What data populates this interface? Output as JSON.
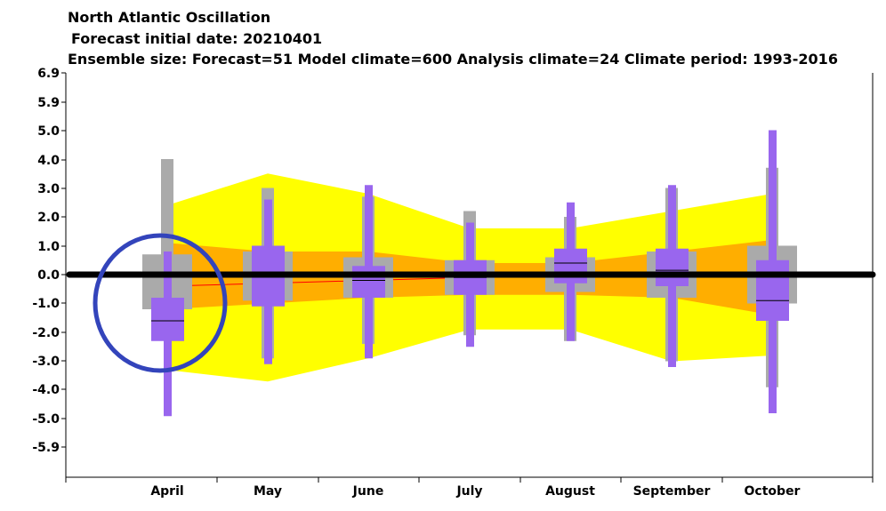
{
  "chart_data": {
    "type": "box",
    "title": "North Atlantic Oscillation",
    "subtitle_1": "Forecast initial date: 20210401",
    "subtitle_2": "Ensemble size: Forecast=51 Model climate=600 Analysis climate=24   Climate period: 1993-2016",
    "categories": [
      "April",
      "May",
      "June",
      "July",
      "August",
      "September",
      "October"
    ],
    "y_ticks": [
      "6.9",
      "5.9",
      "5.0",
      "4.0",
      "3.0",
      "2.0",
      "1.0",
      "0.0",
      "-1.0",
      "-2.0",
      "-3.0",
      "-4.0",
      "-5.0",
      "-5.9"
    ],
    "ylim": [
      -6.9,
      6.9
    ],
    "model_climate": {
      "outer_upper": [
        2.4,
        3.5,
        2.8,
        1.6,
        1.6,
        2.2,
        2.8
      ],
      "outer_lower": [
        -3.3,
        -3.7,
        -2.9,
        -1.9,
        -1.9,
        -3.0,
        -2.8
      ],
      "inner_upper": [
        1.1,
        0.8,
        0.8,
        0.4,
        0.4,
        0.8,
        1.2
      ],
      "inner_lower": [
        -1.2,
        -1.0,
        -0.8,
        -0.7,
        -0.7,
        -0.8,
        -1.4
      ],
      "median": [
        -0.4,
        -0.3,
        -0.2,
        -0.1,
        -0.05,
        0.0,
        0.05
      ]
    },
    "analysis_climate": [
      {
        "min": -1.2,
        "max": 4.0,
        "q25": -1.2,
        "q75": 0.7,
        "median": -0.35
      },
      {
        "min": -2.9,
        "max": 3.0,
        "q25": -0.9,
        "q75": 0.8,
        "median": -0.3
      },
      {
        "min": -2.4,
        "max": 2.7,
        "q25": -0.8,
        "q75": 0.6,
        "median": -0.3
      },
      {
        "min": -2.1,
        "max": 2.2,
        "q25": -0.7,
        "q75": 0.5,
        "median": -0.2
      },
      {
        "min": -2.3,
        "max": 2.0,
        "q25": -0.6,
        "q75": 0.6,
        "median": 0.0
      },
      {
        "min": -3.0,
        "max": 3.0,
        "q25": -0.8,
        "q75": 0.8,
        "median": 0.0
      },
      {
        "min": -3.9,
        "max": 3.7,
        "q25": -1.0,
        "q75": 1.0,
        "median": -0.1
      }
    ],
    "forecast": [
      {
        "min": -4.9,
        "max": 0.8,
        "q25": -2.3,
        "q75": -0.8,
        "median": -1.6
      },
      {
        "min": -3.1,
        "max": 2.6,
        "q25": -1.1,
        "q75": 1.0,
        "median": 0.0
      },
      {
        "min": -2.9,
        "max": 3.1,
        "q25": -0.8,
        "q75": 0.3,
        "median": -0.2
      },
      {
        "min": -2.5,
        "max": 1.8,
        "q25": -0.7,
        "q75": 0.5,
        "median": -0.1
      },
      {
        "min": -2.3,
        "max": 2.5,
        "q25": -0.3,
        "q75": 0.9,
        "median": 0.4
      },
      {
        "min": -3.2,
        "max": 3.1,
        "q25": -0.4,
        "q75": 0.9,
        "median": 0.15
      },
      {
        "min": -4.8,
        "max": 5.0,
        "q25": -1.6,
        "q75": 0.5,
        "median": -0.9
      }
    ],
    "zero_line": 0.0,
    "highlight": "April",
    "colors": {
      "outer_band": "#ffff00",
      "inner_band": "#ffae00",
      "climate_median": "#ff0000",
      "analysis_box": "#aaaaaa",
      "forecast_box": "#9966ee",
      "zero_line": "#000000",
      "circle": "#3344bb"
    }
  }
}
